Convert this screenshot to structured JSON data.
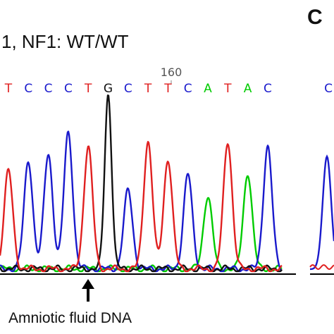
{
  "figure": {
    "title": "1, NF1: WT/WT",
    "panel_label": "C",
    "position_label": "160",
    "caption": "Amniotic fluid DNA",
    "right_panel_base": "C"
  },
  "colors": {
    "A": "#00cc00",
    "C": "#1a1acc",
    "G": "#111111",
    "T": "#e02020",
    "axis": "#000000"
  },
  "chart_data": {
    "type": "line",
    "title": "1, NF1: WT/WT",
    "xlabel": "",
    "ylabel": "",
    "bases": [
      "T",
      "C",
      "C",
      "C",
      "T",
      "G",
      "C",
      "T",
      "T",
      "C",
      "A",
      "T",
      "A",
      "C"
    ],
    "peak_heights": [
      0.56,
      0.62,
      0.66,
      0.78,
      0.7,
      1.0,
      0.45,
      0.73,
      0.63,
      0.54,
      0.42,
      0.73,
      0.55,
      0.7
    ],
    "position_marker": 160,
    "marker_base_index": 5,
    "arrow_base_index": 4
  }
}
